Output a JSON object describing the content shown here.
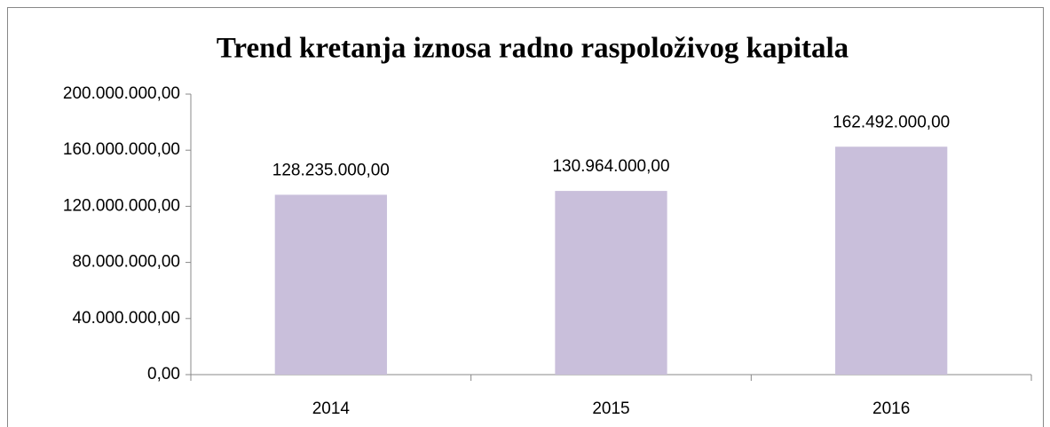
{
  "chart_data": {
    "type": "bar",
    "title": "Trend kretanja iznosa radno raspoloživog kapitala",
    "categories": [
      "2014",
      "2015",
      "2016"
    ],
    "values": [
      128235000,
      130964000,
      162492000
    ],
    "value_labels": [
      "128.235.000,00",
      "130.964.000,00",
      "162.492.000,00"
    ],
    "color": "#c9bfdb",
    "ylim": [
      0,
      200000000
    ],
    "yticks": [
      {
        "value": 0,
        "label": "0,00"
      },
      {
        "value": 40000000,
        "label": "40.000.000,00"
      },
      {
        "value": 80000000,
        "label": "80.000.000,00"
      },
      {
        "value": 120000000,
        "label": "120.000.000,00"
      },
      {
        "value": 160000000,
        "label": "160.000.000,00"
      },
      {
        "value": 200000000,
        "label": "200.000.000,00"
      }
    ],
    "grid": false
  }
}
